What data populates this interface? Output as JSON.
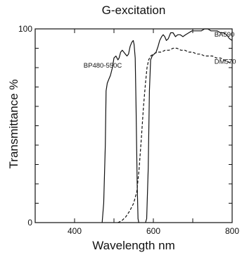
{
  "chart_data": {
    "type": "line",
    "title": "G-excitation",
    "xlabel": "Wavelength nm",
    "ylabel": "Transmittance %",
    "xlim": [
      300,
      800
    ],
    "ylim": [
      0,
      100
    ],
    "x_ticks": [
      400,
      600,
      800
    ],
    "y_ticks": [
      0,
      100
    ],
    "grid": false,
    "series": [
      {
        "name": "BP480-550C",
        "style": "solid",
        "color": "#111111",
        "points": [
          [
            470,
            0
          ],
          [
            474,
            10
          ],
          [
            478,
            40
          ],
          [
            480,
            68
          ],
          [
            483,
            72
          ],
          [
            487,
            74
          ],
          [
            491,
            76
          ],
          [
            496,
            80
          ],
          [
            500,
            85
          ],
          [
            505,
            86
          ],
          [
            510,
            84
          ],
          [
            513,
            85
          ],
          [
            517,
            88
          ],
          [
            521,
            89
          ],
          [
            525,
            88
          ],
          [
            529,
            87
          ],
          [
            533,
            86
          ],
          [
            537,
            87
          ],
          [
            541,
            91
          ],
          [
            545,
            93
          ],
          [
            549,
            94
          ],
          [
            551,
            92
          ],
          [
            554,
            85
          ],
          [
            556,
            60
          ],
          [
            559,
            20
          ],
          [
            561,
            2
          ],
          [
            563,
            0
          ]
        ]
      },
      {
        "name": "BA590",
        "style": "solid",
        "color": "#111111",
        "points": [
          [
            580,
            0
          ],
          [
            583,
            2
          ],
          [
            587,
            28
          ],
          [
            590,
            68
          ],
          [
            593,
            84
          ],
          [
            597,
            86
          ],
          [
            602,
            87
          ],
          [
            607,
            88
          ],
          [
            612,
            91
          ],
          [
            616,
            94
          ],
          [
            621,
            96
          ],
          [
            625,
            97
          ],
          [
            629,
            96
          ],
          [
            633,
            94
          ],
          [
            638,
            95
          ],
          [
            644,
            98
          ],
          [
            650,
            98
          ],
          [
            656,
            96
          ],
          [
            662,
            97
          ],
          [
            668,
            97
          ],
          [
            675,
            96
          ],
          [
            682,
            97
          ],
          [
            690,
            98
          ],
          [
            698,
            99
          ],
          [
            706,
            99
          ],
          [
            714,
            99
          ],
          [
            722,
            99
          ],
          [
            730,
            100
          ],
          [
            738,
            100
          ],
          [
            746,
            99
          ],
          [
            754,
            99
          ],
          [
            762,
            99
          ],
          [
            770,
            98
          ],
          [
            778,
            98
          ],
          [
            786,
            97
          ],
          [
            793,
            95
          ],
          [
            800,
            94
          ]
        ]
      },
      {
        "name": "DM570",
        "style": "dashed",
        "color": "#111111",
        "points": [
          [
            510,
            0
          ],
          [
            520,
            1
          ],
          [
            530,
            3
          ],
          [
            540,
            6
          ],
          [
            550,
            10
          ],
          [
            558,
            16
          ],
          [
            564,
            28
          ],
          [
            570,
            45
          ],
          [
            575,
            60
          ],
          [
            580,
            72
          ],
          [
            584,
            80
          ],
          [
            588,
            84
          ],
          [
            593,
            86
          ],
          [
            600,
            87
          ],
          [
            610,
            88
          ],
          [
            620,
            88
          ],
          [
            630,
            89
          ],
          [
            640,
            89
          ],
          [
            650,
            90
          ],
          [
            660,
            90
          ],
          [
            670,
            89
          ],
          [
            680,
            89
          ],
          [
            690,
            88
          ],
          [
            700,
            88
          ],
          [
            710,
            87
          ],
          [
            720,
            87
          ],
          [
            730,
            86
          ],
          [
            740,
            86
          ],
          [
            750,
            86
          ],
          [
            760,
            85
          ],
          [
            770,
            85
          ],
          [
            780,
            84
          ],
          [
            790,
            83
          ],
          [
            800,
            82
          ]
        ]
      }
    ],
    "series_labels": [
      {
        "text": "BP480-550C",
        "x": 520,
        "y": 80
      },
      {
        "text": "BA590",
        "x": 755,
        "y": 96
      },
      {
        "text": "DM570",
        "x": 755,
        "y": 82
      }
    ]
  }
}
